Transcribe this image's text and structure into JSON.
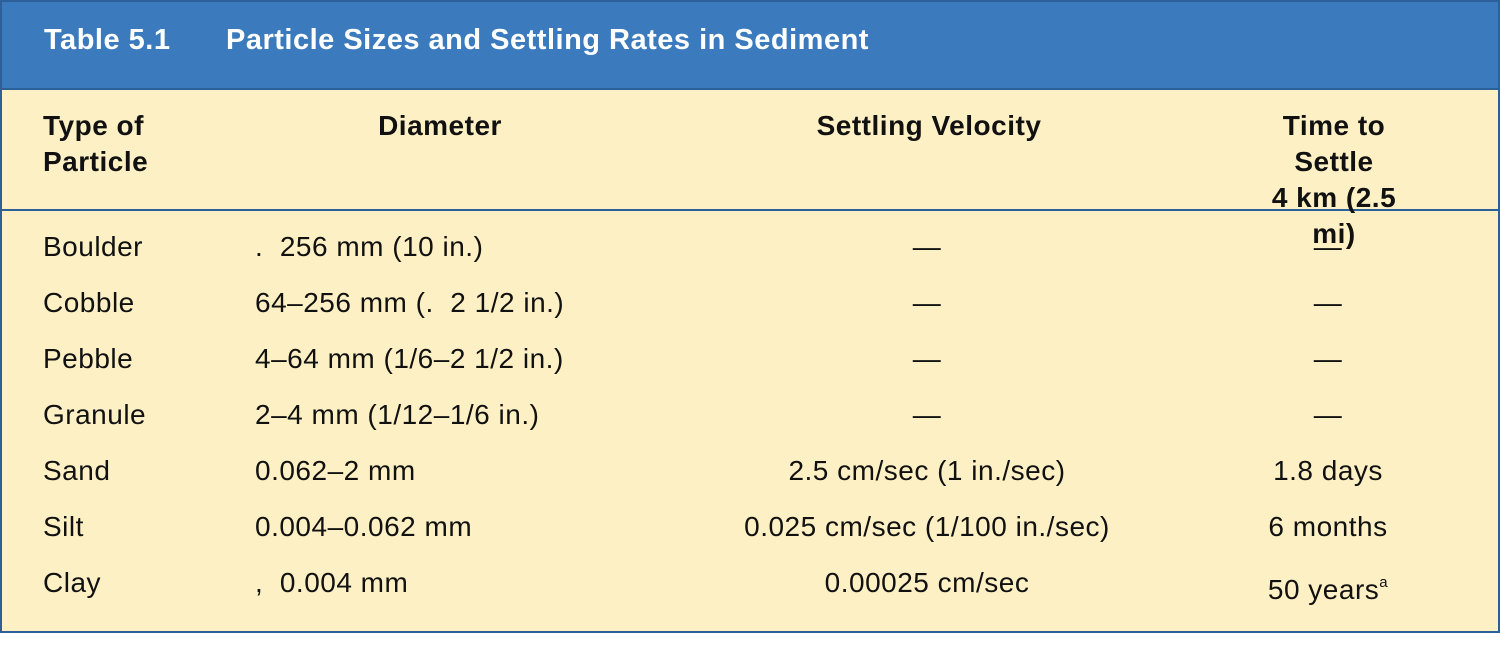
{
  "title": {
    "label": "Table 5.1",
    "text": "Particle Sizes and Settling Rates in Sediment"
  },
  "table": {
    "columns": [
      "Type of\nParticle",
      "Diameter",
      "Settling Velocity",
      "Time to Settle\n4 km (2.5 mi)"
    ],
    "rows": [
      [
        "Boulder",
        ".  256 mm (10 in.)",
        "—",
        "—"
      ],
      [
        "Cobble",
        "64–256 mm (.  2 1/2 in.)",
        "—",
        "—"
      ],
      [
        "Pebble",
        "4–64 mm (1/6–2 1/2 in.)",
        "—",
        "—"
      ],
      [
        "Granule",
        "2–4 mm (1/12–1/6 in.)",
        "—",
        "—"
      ],
      [
        "Sand",
        "0.062–2 mm",
        "2.5 cm/sec (1 in./sec)",
        "1.8 days"
      ],
      [
        "Silt",
        "0.004–0.062 mm",
        "0.025 cm/sec (1/100 in./sec)",
        "6 months"
      ],
      [
        "Clay",
        ",  0.004 mm",
        "0.00025 cm/sec",
        {
          "text": "50 years",
          "sup": "a"
        }
      ]
    ]
  }
}
